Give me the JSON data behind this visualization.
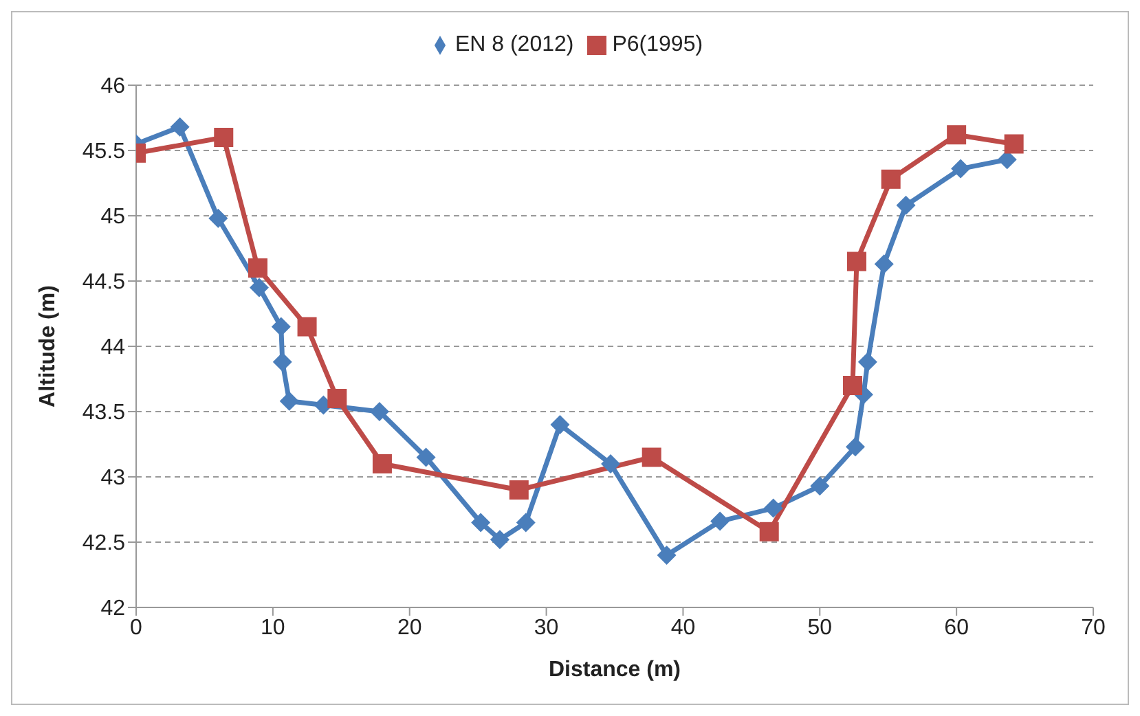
{
  "chart_data": {
    "type": "line",
    "xlabel": "Distance (m)",
    "ylabel": "Altitude (m)",
    "xlim": [
      0,
      70
    ],
    "xticks": [
      0,
      10,
      20,
      30,
      40,
      50,
      60,
      70
    ],
    "ylim": [
      42,
      46
    ],
    "yticks": [
      42,
      42.5,
      43,
      43.5,
      44,
      44.5,
      45,
      45.5,
      46
    ],
    "grid": "y",
    "legend": "top",
    "series": [
      {
        "name": "EN 8 (2012)",
        "color": "#4a7ebb",
        "marker": "diamond",
        "x": [
          0,
          3.2,
          6,
          9,
          10.6,
          10.7,
          11.2,
          13.7,
          17.8,
          21.2,
          25.2,
          26.6,
          28.5,
          31,
          34.7,
          38.8,
          42.7,
          46.6,
          50,
          52.6,
          53.2,
          53.5,
          54.7,
          56.3,
          60.3,
          63.7
        ],
        "values": [
          45.55,
          45.68,
          44.98,
          44.45,
          44.15,
          43.88,
          43.58,
          43.55,
          43.5,
          43.15,
          42.65,
          42.52,
          42.65,
          43.4,
          43.1,
          42.4,
          42.66,
          42.76,
          42.93,
          43.23,
          43.63,
          43.88,
          44.63,
          45.08,
          45.36,
          45.43
        ]
      },
      {
        "name": "P6(1995)",
        "color": "#be4b48",
        "marker": "square",
        "x": [
          0,
          6.4,
          8.9,
          12.5,
          14.7,
          18,
          28,
          37.7,
          46.3,
          52.4,
          52.7,
          55.2,
          60,
          64.2
        ],
        "values": [
          45.48,
          45.6,
          44.6,
          44.15,
          43.6,
          43.1,
          42.9,
          43.15,
          42.58,
          43.7,
          44.65,
          45.28,
          45.62,
          45.55
        ]
      }
    ]
  }
}
